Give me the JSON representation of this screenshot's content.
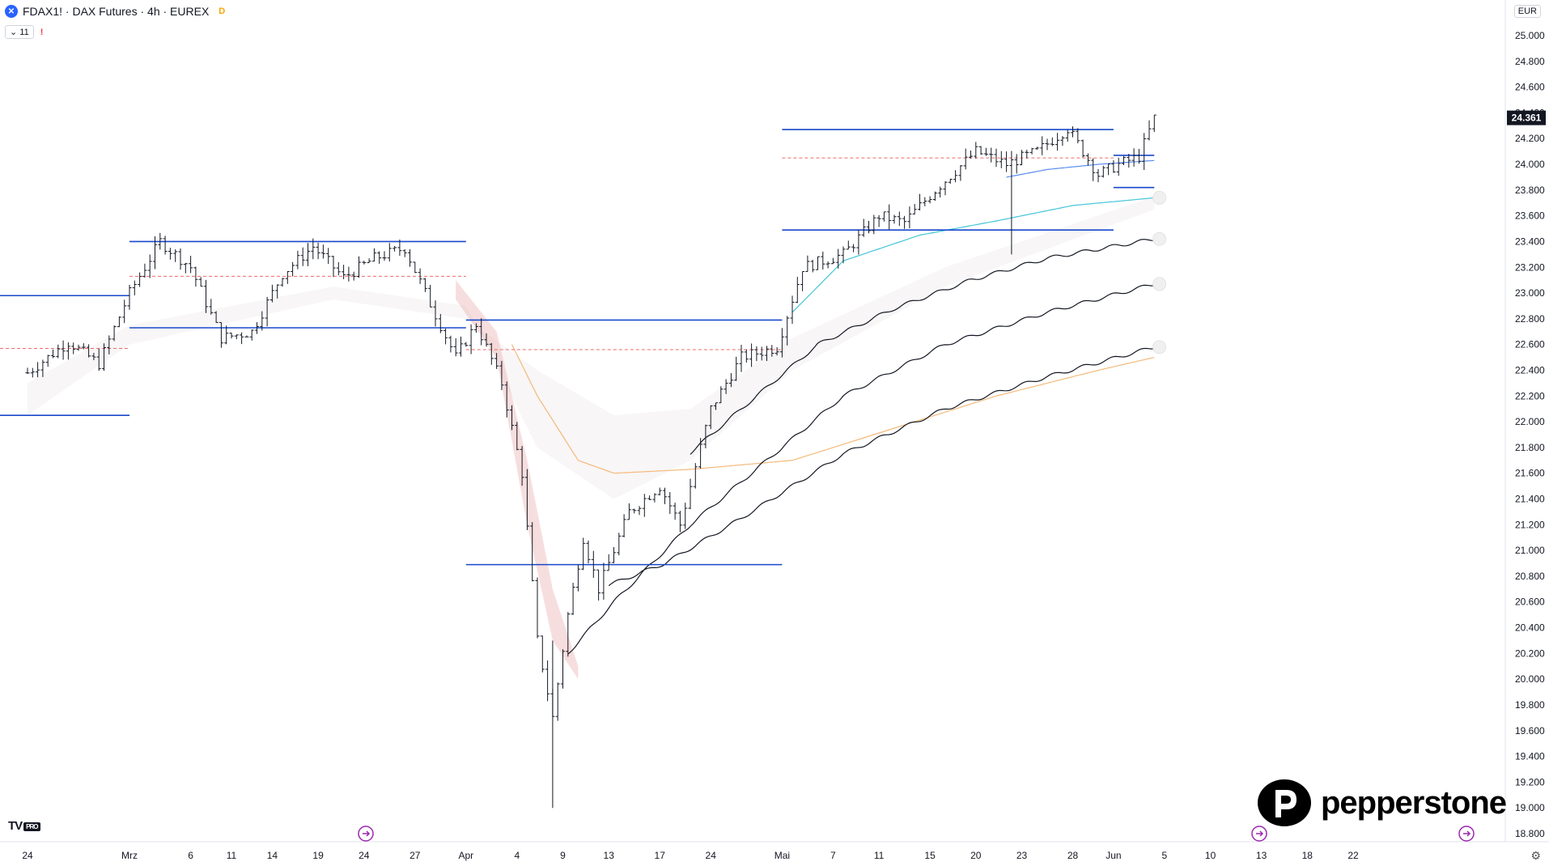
{
  "header": {
    "symbol": "FDAX1! · DAX Futures · 4h · EUREX",
    "badge": "D",
    "indicator_count": "⌄ 11",
    "warning": "!"
  },
  "currency": "EUR",
  "branding": {
    "tv": "TV",
    "tv_pro": "PRO",
    "pepperstone": "pepperstone"
  },
  "icons": [
    "x-icon",
    "warning-icon",
    "goto-realtime-icon",
    "settings-icon",
    "pepperstone-logo"
  ],
  "colors": {
    "level_line": "#1848cc",
    "pivot_dash": "#ef6a6a",
    "ema_blue": "#5b8def",
    "ema_cyan": "#44c6d9",
    "ema_orange": "#f4b97a",
    "ma_black": "#131722",
    "cloud_red": "#e8a0a0"
  },
  "chart_data": {
    "type": "candlestick",
    "title": "FDAX1! · DAX Futures · 4h · EUREX",
    "current_price_label": "24.361",
    "y_ticks": [
      "25.000",
      "24.800",
      "24.600",
      "24.400",
      "24.200",
      "24.000",
      "23.800",
      "23.600",
      "23.400",
      "23.200",
      "23.000",
      "22.800",
      "22.600",
      "22.400",
      "22.200",
      "22.000",
      "21.800",
      "21.600",
      "21.400",
      "21.200",
      "21.000",
      "20.800",
      "20.600",
      "20.400",
      "20.200",
      "20.000",
      "19.800",
      "19.600",
      "19.400",
      "19.200",
      "19.000",
      "18.800"
    ],
    "y_values": [
      25000,
      24800,
      24600,
      24400,
      24200,
      24000,
      23800,
      23600,
      23400,
      23200,
      23000,
      22800,
      22600,
      22400,
      22200,
      22000,
      21800,
      21600,
      21400,
      21200,
      21000,
      20800,
      20600,
      20400,
      20200,
      20000,
      19800,
      19600,
      19400,
      19200,
      19000,
      18800
    ],
    "ylim": [
      18750,
      25100
    ],
    "x_ticks": [
      "24",
      "Mrz",
      "6",
      "11",
      "14",
      "19",
      "24",
      "27",
      "Apr",
      "4",
      "9",
      "13",
      "17",
      "24",
      "Mai",
      "7",
      "11",
      "15",
      "20",
      "23",
      "28",
      "Jun",
      "5",
      "10",
      "13",
      "18",
      "22"
    ],
    "x_tick_bar": [
      0,
      20,
      32,
      40,
      48,
      57,
      66,
      76,
      86,
      96,
      105,
      114,
      124,
      134,
      148,
      158,
      167,
      177,
      186,
      195,
      205,
      213,
      223,
      232,
      242,
      251,
      260
    ],
    "ohlc_anchors": [
      [
        0,
        22380
      ],
      [
        8,
        22620
      ],
      [
        14,
        22450
      ],
      [
        20,
        23000
      ],
      [
        26,
        23400
      ],
      [
        32,
        23200
      ],
      [
        38,
        22650
      ],
      [
        44,
        22700
      ],
      [
        50,
        23150
      ],
      [
        56,
        23360
      ],
      [
        62,
        23120
      ],
      [
        68,
        23270
      ],
      [
        74,
        23350
      ],
      [
        78,
        23000
      ],
      [
        84,
        22500
      ],
      [
        88,
        22760
      ],
      [
        93,
        22300
      ],
      [
        97,
        21600
      ],
      [
        100,
        20300
      ],
      [
        103,
        19700
      ],
      [
        106,
        20500
      ],
      [
        109,
        21100
      ],
      [
        112,
        20700
      ],
      [
        118,
        21300
      ],
      [
        124,
        21500
      ],
      [
        128,
        21200
      ],
      [
        134,
        22100
      ],
      [
        140,
        22500
      ],
      [
        147,
        22580
      ],
      [
        152,
        23200
      ],
      [
        160,
        23300
      ],
      [
        167,
        23600
      ],
      [
        172,
        23550
      ],
      [
        178,
        23800
      ],
      [
        186,
        24100
      ],
      [
        192,
        24000
      ],
      [
        198,
        24100
      ],
      [
        204,
        24280
      ],
      [
        210,
        23920
      ],
      [
        214,
        24000
      ],
      [
        218,
        24060
      ],
      [
        221,
        24360
      ]
    ],
    "ema_blue": [
      [
        192,
        23900
      ],
      [
        200,
        23960
      ],
      [
        210,
        24000
      ],
      [
        221,
        24030
      ]
    ],
    "ema_cyan": [
      [
        150,
        22850
      ],
      [
        160,
        23250
      ],
      [
        175,
        23450
      ],
      [
        190,
        23560
      ],
      [
        205,
        23680
      ],
      [
        221,
        23740
      ]
    ],
    "ma_black_1": [
      [
        130,
        21760
      ],
      [
        140,
        22100
      ],
      [
        155,
        22600
      ],
      [
        170,
        22880
      ],
      [
        185,
        23100
      ],
      [
        200,
        23270
      ],
      [
        221,
        23420
      ]
    ],
    "ma_black_2": [
      [
        106,
        20200
      ],
      [
        115,
        20600
      ],
      [
        130,
        21200
      ],
      [
        145,
        21700
      ],
      [
        160,
        22200
      ],
      [
        180,
        22600
      ],
      [
        200,
        22850
      ],
      [
        221,
        23070
      ]
    ],
    "ma_black_3": [
      [
        114,
        20730
      ],
      [
        125,
        20900
      ],
      [
        140,
        21250
      ],
      [
        160,
        21750
      ],
      [
        180,
        22100
      ],
      [
        200,
        22350
      ],
      [
        221,
        22580
      ]
    ],
    "ema_orange": [
      [
        95,
        22600
      ],
      [
        100,
        22200
      ],
      [
        108,
        21700
      ],
      [
        115,
        21600
      ],
      [
        130,
        21630
      ],
      [
        150,
        21700
      ],
      [
        170,
        21950
      ],
      [
        190,
        22200
      ],
      [
        210,
        22400
      ],
      [
        221,
        22500
      ]
    ],
    "levels": [
      {
        "value": 22980,
        "x0": 0,
        "x1": 20
      },
      {
        "value": 22050,
        "x0": 0,
        "x1": 20
      },
      {
        "value": 23400,
        "x0": 20,
        "x1": 86
      },
      {
        "value": 22730,
        "x0": 20,
        "x1": 86
      },
      {
        "value": 22790,
        "x0": 86,
        "x1": 148
      },
      {
        "value": 20890,
        "x0": 86,
        "x1": 148
      },
      {
        "value": 24270,
        "x0": 148,
        "x1": 213
      },
      {
        "value": 23490,
        "x0": 148,
        "x1": 213
      },
      {
        "value": 24070,
        "x0": 213,
        "x1": 221
      },
      {
        "value": 23820,
        "x0": 213,
        "x1": 221
      }
    ],
    "pivots": [
      {
        "value": 22570,
        "x0": 0,
        "x1": 20
      },
      {
        "value": 23130,
        "x0": 20,
        "x1": 86
      },
      {
        "value": 22560,
        "x0": 86,
        "x1": 148
      },
      {
        "value": 24050,
        "x0": 148,
        "x1": 213
      }
    ]
  }
}
